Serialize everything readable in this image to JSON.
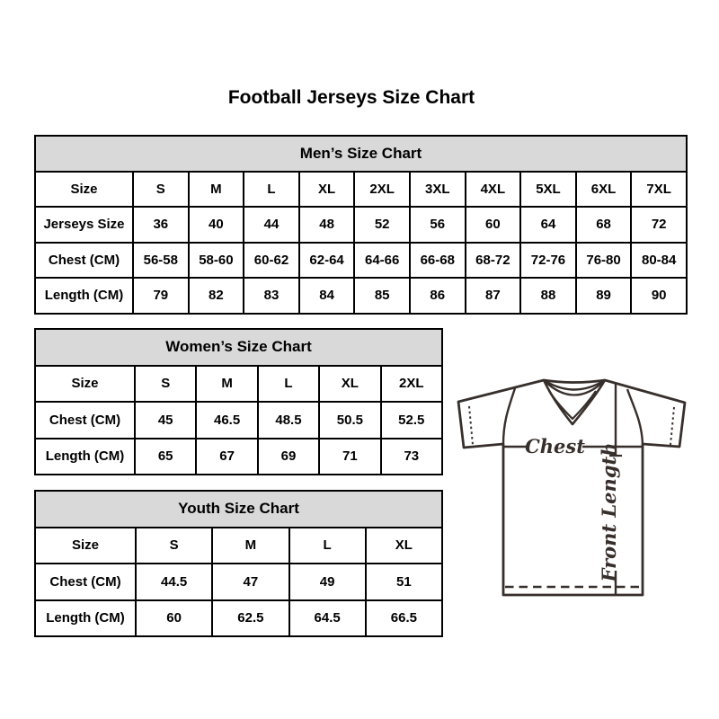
{
  "page": {
    "title": "Football Jerseys Size Chart"
  },
  "colors": {
    "background": "#ffffff",
    "table_header_bg": "#d9d9d9",
    "table_border": "#000000",
    "jersey_line": "#372f2b"
  },
  "tables": [
    {
      "title": "Men’s Size Chart",
      "rows": [
        [
          "Size",
          "S",
          "M",
          "L",
          "XL",
          "2XL",
          "3XL",
          "4XL",
          "5XL",
          "6XL",
          "7XL"
        ],
        [
          "Jerseys Size",
          "36",
          "40",
          "44",
          "48",
          "52",
          "56",
          "60",
          "64",
          "68",
          "72"
        ],
        [
          "Chest (CM)",
          "56-58",
          "58-60",
          "60-62",
          "62-64",
          "64-66",
          "66-68",
          "68-72",
          "72-76",
          "76-80",
          "80-84"
        ],
        [
          "Length (CM)",
          "79",
          "82",
          "83",
          "84",
          "85",
          "86",
          "87",
          "88",
          "89",
          "90"
        ]
      ]
    },
    {
      "title": "Women’s Size Chart",
      "rows": [
        [
          "Size",
          "S",
          "M",
          "L",
          "XL",
          "2XL"
        ],
        [
          "Chest (CM)",
          "45",
          "46.5",
          "48.5",
          "50.5",
          "52.5"
        ],
        [
          "Length (CM)",
          "65",
          "67",
          "69",
          "71",
          "73"
        ]
      ]
    },
    {
      "title": "Youth Size Chart",
      "rows": [
        [
          "Size",
          "S",
          "M",
          "L",
          "XL"
        ],
        [
          "Chest (CM)",
          "44.5",
          "47",
          "49",
          "51"
        ],
        [
          "Length (CM)",
          "60",
          "62.5",
          "64.5",
          "66.5"
        ]
      ]
    }
  ],
  "jersey_diagram": {
    "chest_label": "Chest",
    "front_length_label": "Front Length"
  }
}
